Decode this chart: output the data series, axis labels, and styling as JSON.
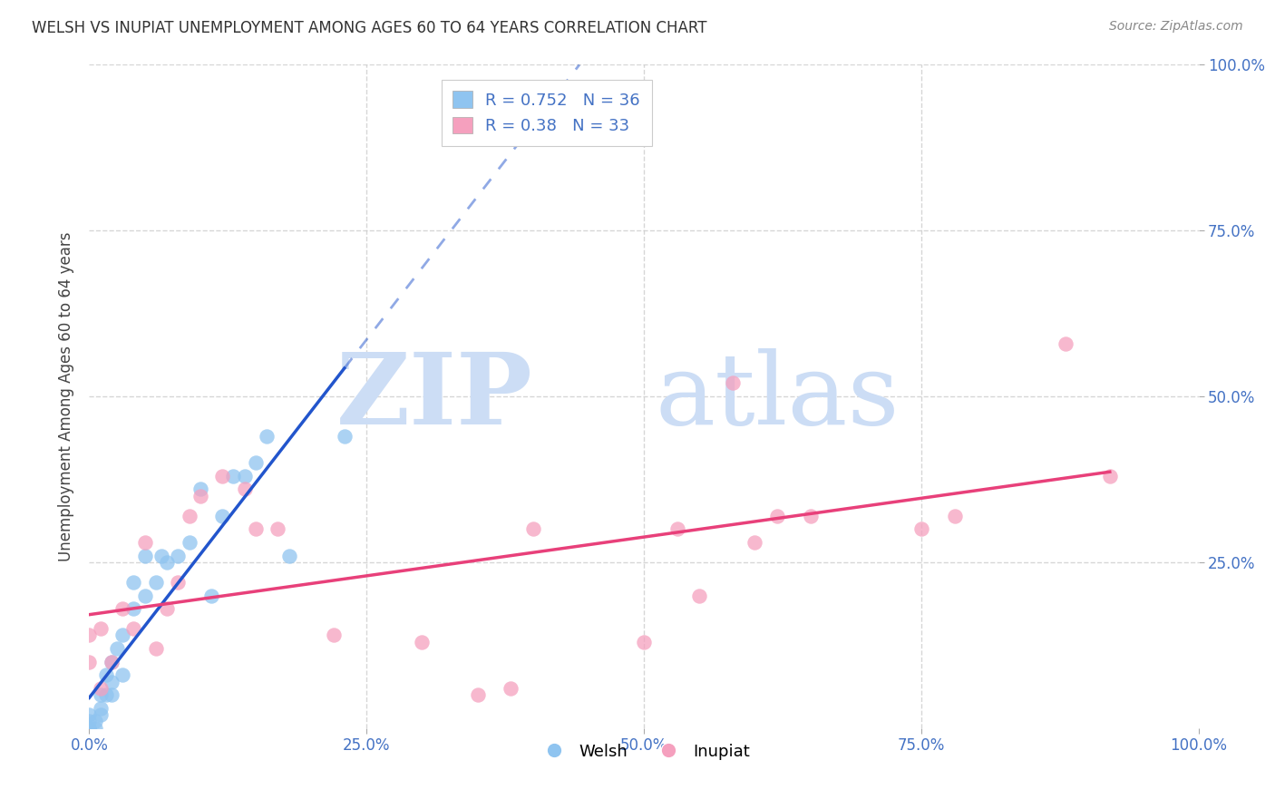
{
  "title": "WELSH VS INUPIAT UNEMPLOYMENT AMONG AGES 60 TO 64 YEARS CORRELATION CHART",
  "source": "Source: ZipAtlas.com",
  "ylabel": "Unemployment Among Ages 60 to 64 years",
  "xlim": [
    0,
    1.0
  ],
  "ylim": [
    0,
    1.0
  ],
  "xtick_labels": [
    "0.0%",
    "25.0%",
    "50.0%",
    "75.0%",
    "100.0%"
  ],
  "xtick_positions": [
    0.0,
    0.25,
    0.5,
    0.75,
    1.0
  ],
  "ytick_labels": [
    "25.0%",
    "50.0%",
    "75.0%",
    "100.0%"
  ],
  "ytick_positions": [
    0.25,
    0.5,
    0.75,
    1.0
  ],
  "welsh_color": "#8FC4F0",
  "inupiat_color": "#F5A0BE",
  "welsh_line_color": "#2255CC",
  "inupiat_line_color": "#E8407A",
  "welsh_R": 0.752,
  "welsh_N": 36,
  "inupiat_R": 0.38,
  "inupiat_N": 33,
  "background_color": "#ffffff",
  "grid_color": "#cccccc",
  "welsh_scatter_x": [
    0.0,
    0.0,
    0.0,
    0.0,
    0.0,
    0.005,
    0.005,
    0.01,
    0.01,
    0.01,
    0.015,
    0.015,
    0.02,
    0.02,
    0.02,
    0.025,
    0.03,
    0.03,
    0.04,
    0.04,
    0.05,
    0.05,
    0.06,
    0.065,
    0.07,
    0.08,
    0.09,
    0.1,
    0.11,
    0.12,
    0.13,
    0.14,
    0.15,
    0.16,
    0.18,
    0.23
  ],
  "welsh_scatter_y": [
    0.0,
    0.0,
    0.0,
    0.01,
    0.02,
    0.0,
    0.01,
    0.02,
    0.03,
    0.05,
    0.05,
    0.08,
    0.07,
    0.1,
    0.05,
    0.12,
    0.08,
    0.14,
    0.18,
    0.22,
    0.2,
    0.26,
    0.22,
    0.26,
    0.25,
    0.26,
    0.28,
    0.36,
    0.2,
    0.32,
    0.38,
    0.38,
    0.4,
    0.44,
    0.26,
    0.44
  ],
  "inupiat_scatter_x": [
    0.0,
    0.0,
    0.01,
    0.01,
    0.02,
    0.03,
    0.04,
    0.05,
    0.06,
    0.07,
    0.08,
    0.09,
    0.1,
    0.12,
    0.14,
    0.15,
    0.17,
    0.22,
    0.3,
    0.35,
    0.38,
    0.4,
    0.5,
    0.53,
    0.55,
    0.58,
    0.6,
    0.62,
    0.65,
    0.75,
    0.78,
    0.88,
    0.92
  ],
  "inupiat_scatter_y": [
    0.1,
    0.14,
    0.06,
    0.15,
    0.1,
    0.18,
    0.15,
    0.28,
    0.12,
    0.18,
    0.22,
    0.32,
    0.35,
    0.38,
    0.36,
    0.3,
    0.3,
    0.14,
    0.13,
    0.05,
    0.06,
    0.3,
    0.13,
    0.3,
    0.2,
    0.52,
    0.28,
    0.32,
    0.32,
    0.3,
    0.32,
    0.58,
    0.38
  ],
  "welsh_line_x0": 0.0,
  "welsh_line_x1": 0.23,
  "inupiat_line_x0": 0.0,
  "inupiat_line_x1": 0.92
}
